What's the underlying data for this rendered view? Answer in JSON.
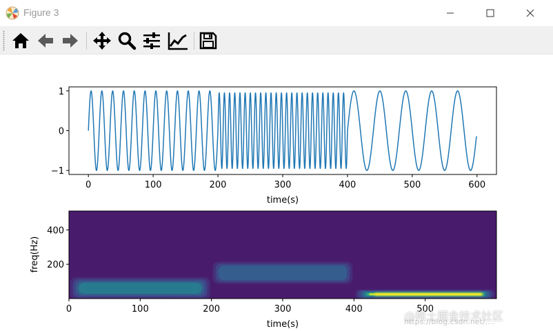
{
  "window": {
    "title": "Figure 3",
    "controls": [
      "minimize",
      "maximize",
      "close"
    ]
  },
  "toolbar": {
    "items": [
      {
        "name": "home",
        "icon": "home-icon"
      },
      {
        "name": "back",
        "icon": "arrow-left-icon"
      },
      {
        "name": "forward",
        "icon": "arrow-right-icon"
      },
      {
        "name": "pan",
        "icon": "move-icon"
      },
      {
        "name": "zoom",
        "icon": "magnifier-icon"
      },
      {
        "name": "subplots",
        "icon": "sliders-icon"
      },
      {
        "name": "edit-axes",
        "icon": "line-chart-icon"
      },
      {
        "name": "save",
        "icon": "floppy-icon"
      }
    ]
  },
  "chart_data": [
    {
      "type": "line",
      "title": "",
      "xlabel": "time(s)",
      "ylabel": "",
      "xlim": [
        -30,
        630
      ],
      "ylim": [
        -1.1,
        1.1
      ],
      "xticks": [
        0,
        100,
        200,
        300,
        400,
        500,
        600
      ],
      "yticks": [
        -1,
        0,
        1
      ],
      "grid": false,
      "series": [
        {
          "color": "#1f77b4",
          "segments": [
            {
              "t_start": 0,
              "t_end": 200,
              "cycles": 12,
              "amplitude": 1.0
            },
            {
              "t_start": 200,
              "t_end": 400,
              "cycles": 25,
              "amplitude": 0.95
            },
            {
              "t_start": 400,
              "t_end": 600,
              "cycles": 5,
              "amplitude": 1.0
            }
          ],
          "end_value": -0.15
        }
      ]
    },
    {
      "type": "heatmap",
      "title": "",
      "xlabel": "time(s)",
      "ylabel": "freq(Hz)",
      "xlim": [
        0,
        600
      ],
      "ylim": [
        0,
        510
      ],
      "xticks": [
        0,
        100,
        200,
        300,
        400,
        500
      ],
      "yticks": [
        200,
        400
      ],
      "colormap": "viridis",
      "background_color": "#481b6d",
      "bands": [
        {
          "t_start": 0,
          "t_end": 200,
          "freq": 60,
          "intensity": 0.45
        },
        {
          "t_start": 200,
          "t_end": 400,
          "freq": 150,
          "intensity": 0.35
        },
        {
          "t_start": 400,
          "t_end": 600,
          "freq": 25,
          "intensity": 0.9
        }
      ]
    }
  ],
  "watermark": {
    "text": "@稀土掘金技术社区",
    "sub": "https://blog.csdn.net/...."
  }
}
